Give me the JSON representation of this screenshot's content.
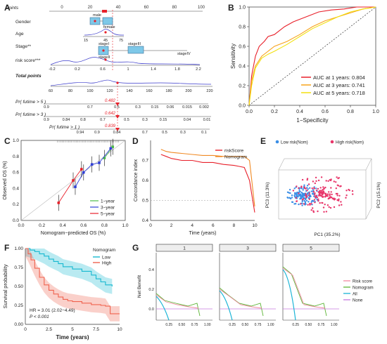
{
  "panels": {
    "A": "A",
    "B": "B",
    "C": "C",
    "D": "D",
    "E": "E",
    "F": "F",
    "G": "G"
  },
  "nomogram": {
    "labels": {
      "points": "Points",
      "gender": "Gender",
      "age": "Age",
      "stage": "Stage**",
      "risk": "risk score***",
      "total": "Total points",
      "p5": "Pr( futime > 5 )",
      "p3": "Pr( futime > 3 )",
      "p1": "Pr( futime > 1 )"
    },
    "points_ticks": [
      "0",
      "20",
      "40",
      "60",
      "80",
      "100"
    ],
    "gender_cats": [
      "male",
      "female"
    ],
    "age_ticks": [
      "15",
      "45",
      "75"
    ],
    "stage_cats": [
      "stageI",
      "stageII",
      "stageIII",
      "stageIV"
    ],
    "risk_ticks": [
      "-0.2",
      "0.2",
      "0.6",
      "1",
      "1.4",
      "1.8",
      "2.2"
    ],
    "total_ticks": [
      "60",
      "80",
      "100",
      "120",
      "140",
      "160",
      "180",
      "200",
      "220"
    ],
    "highlight": {
      "p5": "0.482",
      "p3": "0.642",
      "p1": "0.839"
    },
    "p5_ticks": [
      "0.9",
      "0.7",
      "0.5",
      "0.3",
      "0.15",
      "0.06",
      "0.015",
      "0.002"
    ],
    "p3_ticks": [
      "0.9",
      "0.84",
      "0.8",
      "0.7",
      "0.5",
      "0.3",
      "0.15",
      "0.04",
      "0.01"
    ],
    "p1_ticks": [
      "0.94",
      "0.9",
      "0.84",
      "0.7",
      "0.5",
      "0.3",
      "0.1"
    ]
  },
  "chart_data": [
    {
      "panel": "B",
      "type": "line",
      "xlabel": "1−Specificity",
      "ylabel": "Sensitivity",
      "xlim": [
        0,
        1
      ],
      "ylim": [
        0,
        1
      ],
      "ticks": [
        "0.0",
        "0.2",
        "0.4",
        "0.6",
        "0.8",
        "1.0"
      ],
      "legend_position": "bottom-right",
      "series": [
        {
          "name": "AUC at 1 years: 0.804",
          "color": "#e8202a",
          "x": [
            0,
            0.02,
            0.05,
            0.08,
            0.12,
            0.15,
            0.2,
            0.28,
            0.35,
            0.45,
            0.55,
            0.65,
            0.75,
            0.85,
            0.92,
            1
          ],
          "y": [
            0,
            0.3,
            0.5,
            0.6,
            0.65,
            0.7,
            0.72,
            0.8,
            0.85,
            0.9,
            0.95,
            0.97,
            0.98,
            1,
            1,
            1
          ]
        },
        {
          "name": "AUC at 3 years: 0.741",
          "color": "#f7a21b",
          "x": [
            0,
            0.02,
            0.05,
            0.1,
            0.15,
            0.2,
            0.3,
            0.4,
            0.5,
            0.6,
            0.7,
            0.8,
            0.9,
            1
          ],
          "y": [
            0,
            0.25,
            0.4,
            0.5,
            0.55,
            0.6,
            0.65,
            0.72,
            0.8,
            0.86,
            0.9,
            0.94,
            0.98,
            1
          ]
        },
        {
          "name": "AUC at 5 years: 0.718",
          "color": "#f2e010",
          "x": [
            0,
            0.02,
            0.05,
            0.1,
            0.15,
            0.2,
            0.3,
            0.4,
            0.5,
            0.6,
            0.7,
            0.8,
            0.9,
            1
          ],
          "y": [
            0,
            0.2,
            0.38,
            0.48,
            0.52,
            0.55,
            0.62,
            0.7,
            0.78,
            0.84,
            0.9,
            0.95,
            0.98,
            1
          ]
        }
      ]
    },
    {
      "panel": "C",
      "type": "line",
      "xlabel": "Nomogram−predicted OS (%)",
      "ylabel": "Observed OS (%)",
      "xlim": [
        0,
        1
      ],
      "ylim": [
        0,
        1
      ],
      "ticks": [
        "0.0",
        "0.2",
        "0.4",
        "0.6",
        "0.8",
        "1.0"
      ],
      "series": [
        {
          "name": "1−year",
          "color": "#4cbb4a",
          "x": [
            0.8,
            0.88
          ],
          "y": [
            0.78,
            0.92
          ]
        },
        {
          "name": "3−year",
          "color": "#2f3fd6",
          "x": [
            0.52,
            0.6,
            0.68,
            0.75,
            0.86
          ],
          "y": [
            0.42,
            0.6,
            0.7,
            0.72,
            0.9
          ]
        },
        {
          "name": "5−year",
          "color": "#e8202a",
          "x": [
            0.36,
            0.5,
            0.58
          ],
          "y": [
            0.22,
            0.5,
            0.64
          ]
        }
      ]
    },
    {
      "panel": "D",
      "type": "line",
      "xlabel": "Time (years)",
      "ylabel": "Concordance index",
      "xlim": [
        0,
        10
      ],
      "ylim": [
        0.4,
        0.8
      ],
      "xticks": [
        "0",
        "2",
        "4",
        "6",
        "8",
        "10"
      ],
      "yticks": [
        "0.4",
        "0.5",
        "0.6",
        "0.7"
      ],
      "series": [
        {
          "name": "riskScore",
          "color": "#e8202a",
          "x": [
            1,
            1.5,
            2,
            3,
            4,
            5,
            6,
            7,
            8,
            8.5,
            9,
            9.5,
            10
          ],
          "y": [
            0.73,
            0.72,
            0.71,
            0.7,
            0.7,
            0.69,
            0.69,
            0.68,
            0.675,
            0.67,
            0.665,
            0.6,
            0.44
          ]
        },
        {
          "name": "Nomogram",
          "color": "#f08a24",
          "x": [
            1,
            1.5,
            2,
            3,
            4,
            5,
            6,
            7,
            8,
            8.5,
            9,
            9.5,
            10
          ],
          "y": [
            0.755,
            0.745,
            0.74,
            0.735,
            0.73,
            0.725,
            0.725,
            0.72,
            0.72,
            0.72,
            0.72,
            0.7,
            0.47
          ]
        }
      ]
    },
    {
      "panel": "E",
      "type": "scatter",
      "xlabel": "PC1 (35.2%)",
      "ylabel": "PC3 (11.3%)",
      "zlabel": "PC2 (15.1%)",
      "legend": [
        {
          "name": "Low risk(Nom)",
          "color": "#3a8ee6"
        },
        {
          "name": "High risk(Nom)",
          "color": "#e8366a"
        }
      ]
    },
    {
      "panel": "F",
      "type": "line",
      "xlabel": "Time (years)",
      "ylabel": "Survival probability",
      "xlim": [
        0,
        10
      ],
      "ylim": [
        0,
        1
      ],
      "xticks": [
        "0",
        "2.5",
        "5",
        "7.5",
        "10"
      ],
      "yticks": [
        "0.00",
        "0.25",
        "0.50",
        "0.75",
        "1.00"
      ],
      "legend_title": "Nomogram",
      "annotation": "HR = 3.01 (2.02−4.49)",
      "pvalue": "P < 0.001",
      "series": [
        {
          "name": "Low",
          "color": "#17b8d0",
          "x": [
            0,
            0.5,
            1,
            1.5,
            2,
            2.5,
            3,
            3.5,
            4,
            5,
            6,
            7,
            7.5,
            8,
            8.5,
            9.2
          ],
          "y": [
            1,
            0.98,
            0.96,
            0.93,
            0.9,
            0.86,
            0.83,
            0.8,
            0.76,
            0.73,
            0.7,
            0.65,
            0.6,
            0.56,
            0.52,
            0.5
          ]
        },
        {
          "name": "High",
          "color": "#f0634f",
          "x": [
            0,
            0.3,
            0.6,
            1,
            1.5,
            2,
            2.5,
            3,
            3.5,
            4,
            4.5,
            5,
            6,
            7,
            8,
            8.5,
            9,
            9.2,
            10
          ],
          "y": [
            1,
            0.93,
            0.85,
            0.74,
            0.62,
            0.52,
            0.45,
            0.4,
            0.36,
            0.33,
            0.31,
            0.3,
            0.28,
            0.26,
            0.25,
            0.24,
            0.14,
            0.14,
            0.14
          ]
        }
      ]
    },
    {
      "panel": "G",
      "type": "line",
      "ylabel": "Net Benefit",
      "facets": [
        "1",
        "3",
        "5"
      ],
      "xticks": [
        "0.25",
        "0.50",
        "0.75",
        "1.00"
      ],
      "yticks": [
        "0.0",
        "0.2",
        "0.4"
      ],
      "series": [
        {
          "name": "Risk score",
          "color": "#f08aa0"
        },
        {
          "name": "Nomogram",
          "color": "#5db536"
        },
        {
          "name": "All",
          "color": "#1ab4d6"
        },
        {
          "name": "None",
          "color": "#c77adf"
        }
      ]
    }
  ]
}
